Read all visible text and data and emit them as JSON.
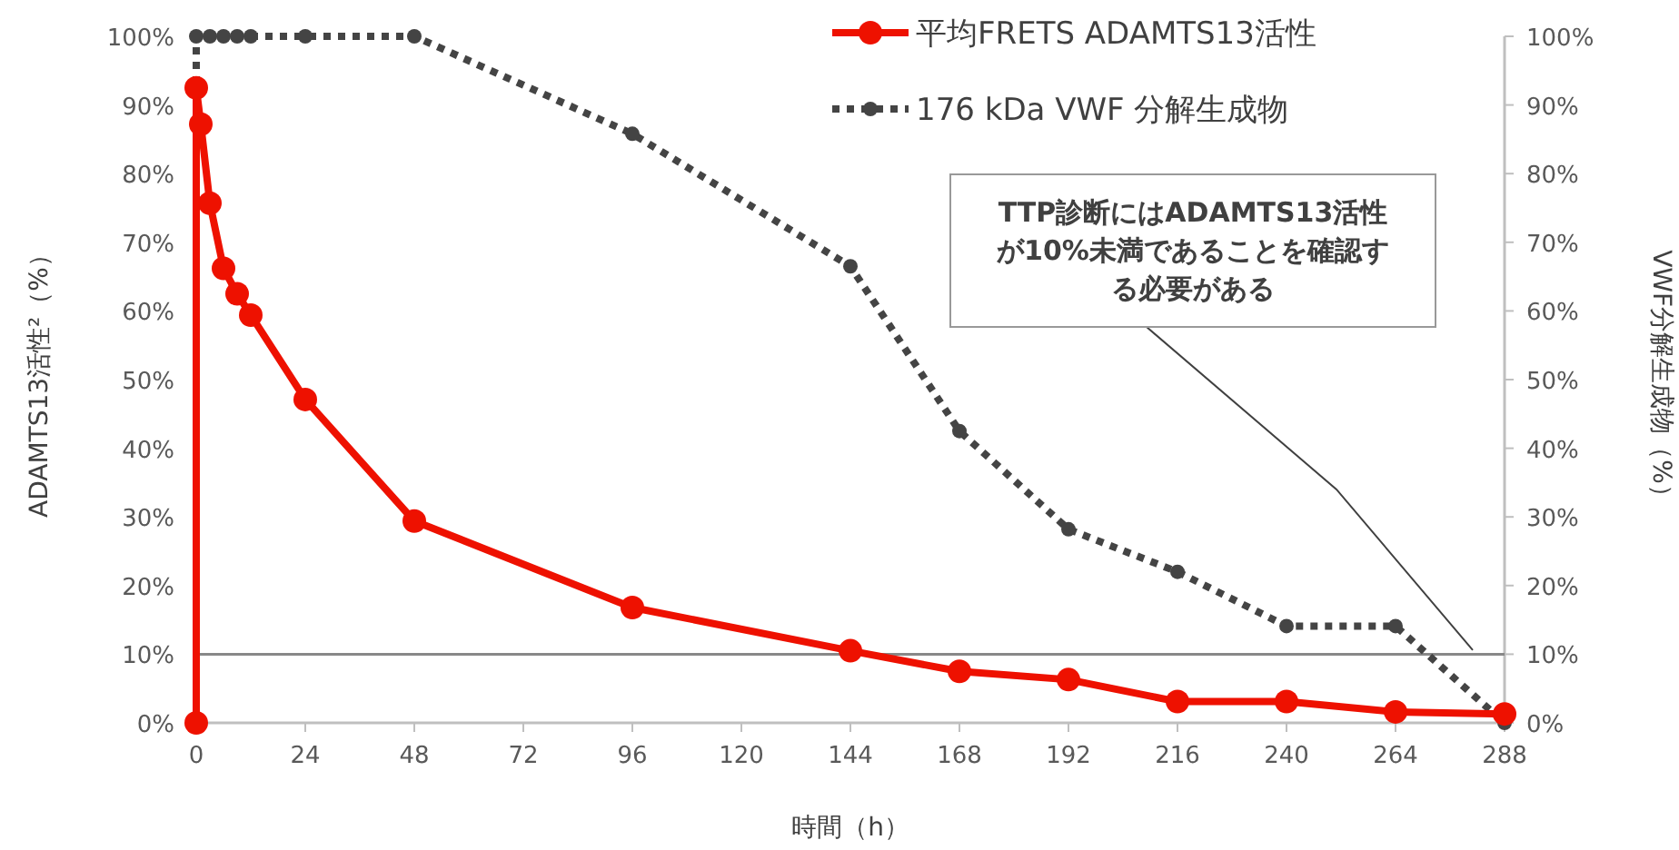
{
  "chart_data": {
    "type": "line",
    "xlabel": "時間（h）",
    "ylabel": "ADAMTS13活性²（%）",
    "y2label": "VWF分解生成物（%）",
    "xlim": [
      0,
      288
    ],
    "xticks": [
      0,
      24,
      48,
      72,
      96,
      120,
      144,
      168,
      192,
      216,
      240,
      264,
      288
    ],
    "ylim": [
      0,
      100
    ],
    "yticks": [
      {
        "value": 0,
        "label": "0%"
      },
      {
        "value": 10,
        "label": "10%"
      },
      {
        "value": 20,
        "label": "20%"
      },
      {
        "value": 30,
        "label": "30%"
      },
      {
        "value": 40,
        "label": "40%"
      },
      {
        "value": 50,
        "label": "50%"
      },
      {
        "value": 60,
        "label": "60%"
      },
      {
        "value": 70,
        "label": "70%"
      },
      {
        "value": 80,
        "label": "80%"
      },
      {
        "value": 90,
        "label": "90%"
      },
      {
        "value": 100,
        "label": "100%"
      }
    ],
    "y2lim": [
      0,
      100
    ],
    "y2ticks": [
      {
        "value": 0,
        "label": "0%"
      },
      {
        "value": 10,
        "label": "10%"
      },
      {
        "value": 20,
        "label": "20%"
      },
      {
        "value": 30,
        "label": "30%"
      },
      {
        "value": 40,
        "label": "40%"
      },
      {
        "value": 50,
        "label": "50%"
      },
      {
        "value": 60,
        "label": "60%"
      },
      {
        "value": 70,
        "label": "70%"
      },
      {
        "value": 80,
        "label": "80%"
      },
      {
        "value": 90,
        "label": "90%"
      },
      {
        "value": 100,
        "label": "100%"
      }
    ],
    "series": [
      {
        "name": "平均FRETS ADAMTS13活性",
        "color": "#ee1100",
        "line_style": "solid",
        "marker": "circle",
        "x": [
          0,
          0,
          1,
          3,
          6,
          9,
          12,
          24,
          48,
          96,
          144,
          168,
          192,
          216,
          240,
          264,
          288
        ],
        "values": [
          0,
          92.5,
          87.2,
          75.7,
          66.2,
          62.5,
          59.4,
          47.1,
          29.4,
          16.8,
          10.5,
          7.5,
          6.3,
          3.1,
          3.1,
          1.6,
          1.3
        ]
      },
      {
        "name": "176 kDa VWF 分解生成物",
        "color": "#444444",
        "line_style": "dotted",
        "marker": "circle",
        "x": [
          0,
          0,
          3,
          6,
          9,
          12,
          24,
          48,
          96,
          144,
          168,
          192,
          216,
          240,
          264,
          288
        ],
        "values": [
          0,
          100,
          100,
          100,
          100,
          100,
          100,
          100,
          85.8,
          66.5,
          42.5,
          28.2,
          22,
          14.1,
          14.1,
          0
        ]
      }
    ],
    "ref_lines": [
      {
        "axis": "y",
        "value": 10,
        "color": "#888888"
      }
    ],
    "annotations": [
      {
        "text": "TTP診断にはADAMTS13活性が10%未満であることを確認する必要がある",
        "x": 281,
        "y": 10.6
      }
    ],
    "legend": "top right",
    "grid": false
  }
}
